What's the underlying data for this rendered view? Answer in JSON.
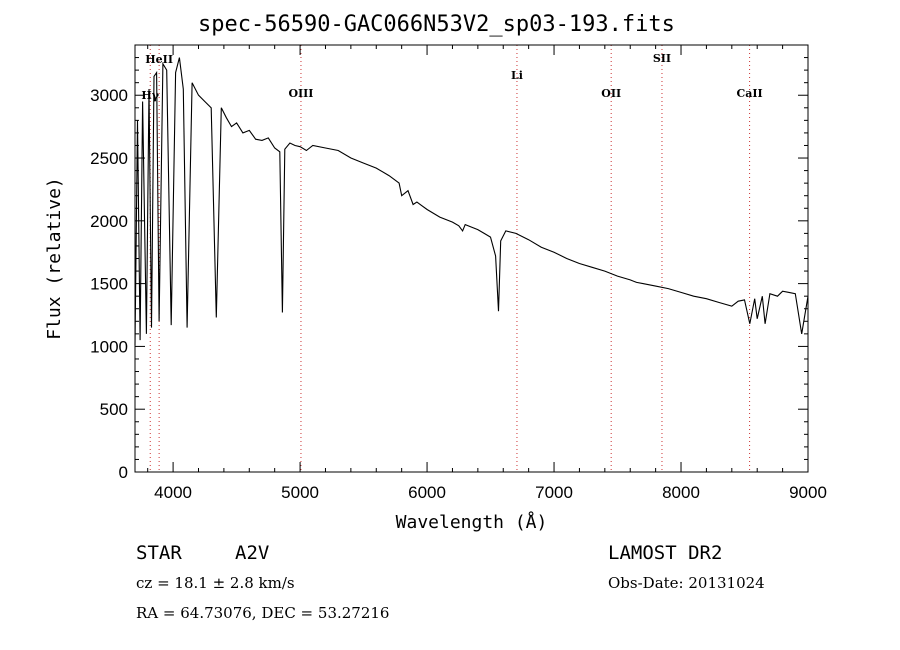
{
  "chart_data": {
    "type": "line",
    "title": "spec-56590-GAC066N53V2_sp03-193.fits",
    "xlabel": "Wavelength (Å)",
    "ylabel": "Flux (relative)",
    "xlim": [
      3700,
      9000
    ],
    "ylim": [
      0,
      3400
    ],
    "xticks": [
      4000,
      5000,
      6000,
      7000,
      8000,
      9000
    ],
    "yticks": [
      0,
      500,
      1000,
      1500,
      2000,
      2500,
      3000
    ],
    "grid": false,
    "line_markers": [
      {
        "label": "Hγ",
        "x": 3820
      },
      {
        "label": "HeII",
        "x": 3890
      },
      {
        "label": "OIII",
        "x": 5007
      },
      {
        "label": "Li",
        "x": 6708
      },
      {
        "label": "OII",
        "x": 7450
      },
      {
        "label": "SII",
        "x": 7850
      },
      {
        "label": "CaII",
        "x": 8540
      }
    ],
    "series": [
      {
        "x": [
          3700,
          3720,
          3740,
          3760,
          3790,
          3810,
          3830,
          3850,
          3870,
          3890,
          3920,
          3950,
          3985,
          4020,
          4050,
          4080,
          4110,
          4150,
          4200,
          4250,
          4300,
          4340,
          4380,
          4420,
          4460,
          4500,
          4550,
          4600,
          4650,
          4700,
          4750,
          4800,
          4840,
          4861,
          4880,
          4920,
          4960,
          5000,
          5050,
          5100,
          5200,
          5300,
          5400,
          5500,
          5600,
          5700,
          5780,
          5800,
          5850,
          5890,
          5920,
          5960,
          6000,
          6100,
          6200,
          6250,
          6280,
          6300,
          6350,
          6400,
          6450,
          6500,
          6540,
          6563,
          6580,
          6620,
          6700,
          6800,
          6900,
          7000,
          7100,
          7200,
          7300,
          7400,
          7500,
          7600,
          7650,
          7700,
          7800,
          7900,
          8000,
          8100,
          8200,
          8300,
          8400,
          8450,
          8500,
          8542,
          8580,
          8600,
          8640,
          8662,
          8700,
          8760,
          8800,
          8850,
          8900,
          8950,
          9000
        ],
        "y": [
          1010,
          2800,
          1050,
          2950,
          1100,
          3050,
          1150,
          3150,
          3180,
          1200,
          3250,
          3200,
          1170,
          3180,
          3300,
          3050,
          1150,
          3100,
          3000,
          2950,
          2900,
          1230,
          2900,
          2820,
          2750,
          2780,
          2700,
          2720,
          2650,
          2640,
          2660,
          2580,
          2550,
          1270,
          2570,
          2620,
          2600,
          2590,
          2560,
          2600,
          2580,
          2560,
          2500,
          2460,
          2420,
          2360,
          2300,
          2200,
          2240,
          2130,
          2150,
          2120,
          2090,
          2030,
          1990,
          1960,
          1920,
          1970,
          1950,
          1930,
          1900,
          1870,
          1720,
          1280,
          1840,
          1920,
          1900,
          1850,
          1790,
          1750,
          1700,
          1660,
          1630,
          1600,
          1560,
          1530,
          1510,
          1500,
          1480,
          1460,
          1430,
          1400,
          1380,
          1350,
          1320,
          1360,
          1370,
          1180,
          1380,
          1220,
          1400,
          1180,
          1420,
          1400,
          1440,
          1430,
          1420,
          1100,
          1400
        ]
      }
    ]
  },
  "info": {
    "object_class": "STAR",
    "subclass": "A2V",
    "survey": "LAMOST DR2",
    "cz": "cz = 18.1 ± 2.8 km/s",
    "obs_date": "Obs-Date: 20131024",
    "coords": "RA =  64.73076, DEC =  53.27216"
  },
  "colors": {
    "spectrum": "#000000",
    "marker": "#cc3333",
    "marker_black": "#000000"
  }
}
